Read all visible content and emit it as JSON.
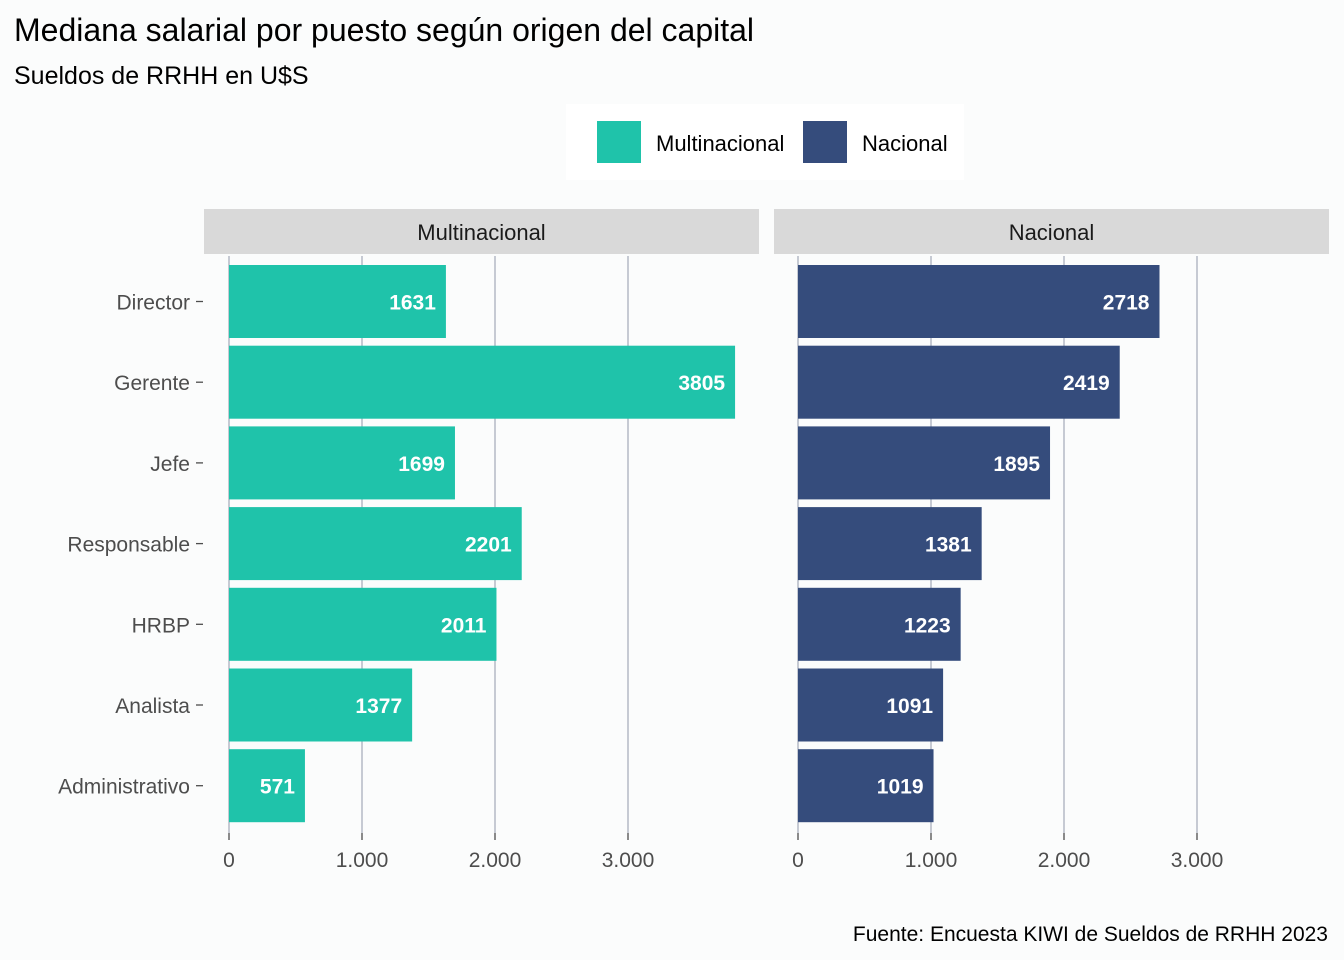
{
  "chart_data": {
    "type": "bar",
    "orientation": "horizontal",
    "title": "Mediana salarial por puesto según origen del capital",
    "subtitle": "Sueldos de RRHH en U$S",
    "caption": "Fuente: Encuesta KIWI de Sueldos de RRHH 2023",
    "categories": [
      "Director",
      "Gerente",
      "Jefe",
      "Responsable",
      "HRBP",
      "Analista",
      "Administrativo"
    ],
    "xlim": [
      0,
      3900
    ],
    "x_ticks": [
      0,
      1000,
      2000,
      3000
    ],
    "x_tick_labels": [
      "0",
      "1.000",
      "2.000",
      "3.000"
    ],
    "grid": "vertical",
    "legend": {
      "position": "top",
      "entries": [
        {
          "label": "Multinacional",
          "color": "#1fc3aa"
        },
        {
          "label": "Nacional",
          "color": "#354c7c"
        }
      ]
    },
    "panels": [
      {
        "name": "Multinacional",
        "color": "#1fc3aa",
        "values": [
          1631,
          3805,
          1699,
          2201,
          2011,
          1377,
          571
        ]
      },
      {
        "name": "Nacional",
        "color": "#354c7c",
        "values": [
          2718,
          2419,
          1895,
          1381,
          1223,
          1091,
          1019
        ]
      }
    ]
  },
  "colors": {
    "background": "#fbfcfc",
    "strip": "#d9d9d9",
    "grid": "#a9b0bd"
  }
}
